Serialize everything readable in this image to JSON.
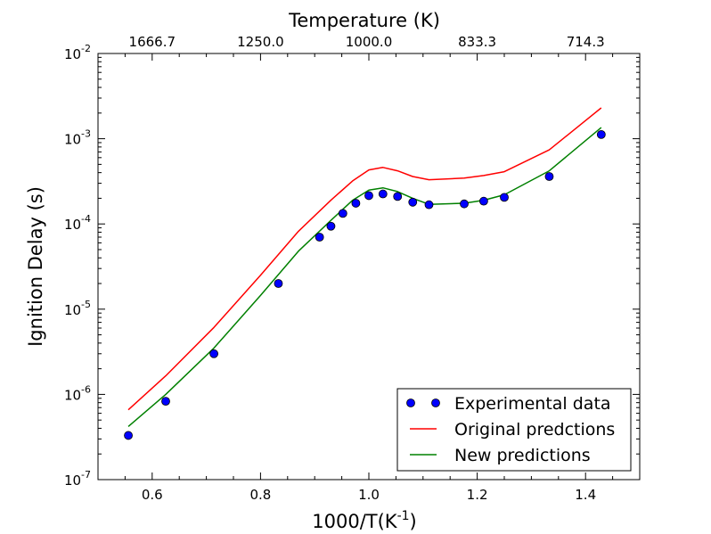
{
  "chart_data": {
    "type": "scatter",
    "xlabel": "1000/T",
    "xlabel_unit_base": "(K",
    "xlabel_unit_exp": "-1",
    "xlabel_unit_close": ")",
    "ylabel": "Ignition Delay (s)",
    "top_axis_title": "Temperature (K)",
    "xlim": [
      0.5,
      1.5
    ],
    "ylim": [
      1e-07,
      0.01
    ],
    "yscale": "log",
    "grid": false,
    "legend_position": "lower-right",
    "x_ticks": [
      "0.6",
      "0.8",
      "1.0",
      "1.2",
      "1.4"
    ],
    "x_tick_values": [
      0.6,
      0.8,
      1.0,
      1.2,
      1.4
    ],
    "top_ticks": [
      "1666.7",
      "1250.0",
      "1000.0",
      "833.3",
      "714.3"
    ],
    "top_tick_values": [
      0.6,
      0.8,
      1.0,
      1.2,
      1.4
    ],
    "y_ticks": [
      {
        "base": "10",
        "exp": "-7",
        "value": 1e-07
      },
      {
        "base": "10",
        "exp": "-6",
        "value": 1e-06
      },
      {
        "base": "10",
        "exp": "-5",
        "value": 1e-05
      },
      {
        "base": "10",
        "exp": "-4",
        "value": 0.0001
      },
      {
        "base": "10",
        "exp": "-3",
        "value": 0.001
      },
      {
        "base": "10",
        "exp": "-2",
        "value": 0.01
      }
    ],
    "series": [
      {
        "name": "Experimental data",
        "kind": "markers",
        "color": "#0000ff",
        "x": [
          0.556,
          0.625,
          0.714,
          0.833,
          0.909,
          0.93,
          0.952,
          0.976,
          1.0,
          1.026,
          1.053,
          1.081,
          1.111,
          1.176,
          1.212,
          1.25,
          1.333,
          1.429
        ],
        "y": [
          3.3e-07,
          8.3e-07,
          3e-06,
          2e-05,
          7e-05,
          9.4e-05,
          0.000133,
          0.000175,
          0.000215,
          0.000225,
          0.00021,
          0.00018,
          0.000168,
          0.000172,
          0.000185,
          0.000205,
          0.00036,
          0.00112
        ]
      },
      {
        "name": "Original predctions",
        "kind": "line",
        "color": "#ff0000",
        "x": [
          0.556,
          0.625,
          0.714,
          0.8,
          0.87,
          0.93,
          0.97,
          1.0,
          1.026,
          1.053,
          1.081,
          1.111,
          1.176,
          1.212,
          1.25,
          1.333,
          1.429
        ],
        "y": [
          6.6e-07,
          1.65e-06,
          6.1e-06,
          2.5e-05,
          8.2e-05,
          0.00019,
          0.00032,
          0.00043,
          0.00046,
          0.00042,
          0.00036,
          0.00033,
          0.000345,
          0.00037,
          0.00041,
          0.00074,
          0.0023
        ]
      },
      {
        "name": "New predictions",
        "kind": "line",
        "color": "#008000",
        "x": [
          0.556,
          0.625,
          0.714,
          0.8,
          0.87,
          0.93,
          0.97,
          1.0,
          1.026,
          1.053,
          1.081,
          1.111,
          1.176,
          1.212,
          1.25,
          1.333,
          1.429
        ],
        "y": [
          4.2e-07,
          1e-06,
          3.5e-06,
          1.45e-05,
          4.8e-05,
          0.00011,
          0.00019,
          0.00025,
          0.000265,
          0.00024,
          0.0002,
          0.00017,
          0.000175,
          0.00019,
          0.00022,
          0.00042,
          0.00135
        ]
      }
    ]
  }
}
